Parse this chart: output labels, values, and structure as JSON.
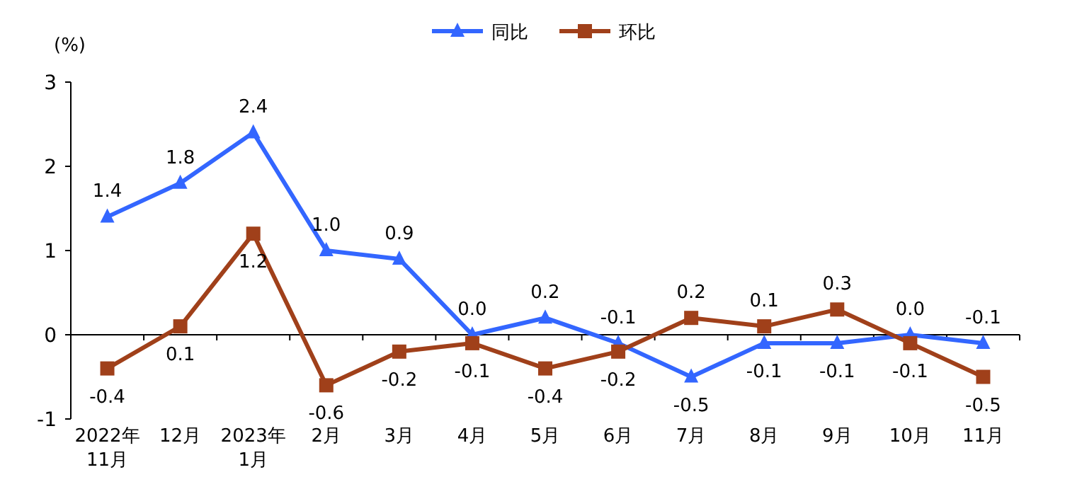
{
  "chart_data": {
    "type": "line",
    "ylabel": "(%)",
    "categories": [
      "2022年\n11月",
      "12月",
      "2023年\n1月",
      "2月",
      "3月",
      "4月",
      "5月",
      "6月",
      "7月",
      "8月",
      "9月",
      "10月",
      "11月"
    ],
    "series": [
      {
        "name": "同比",
        "color": "#3366ff",
        "marker": "triangle",
        "values": [
          1.4,
          1.8,
          2.4,
          1.0,
          0.9,
          0.0,
          0.2,
          -0.1,
          -0.5,
          -0.1,
          -0.1,
          0.0,
          -0.1
        ],
        "value_labels": [
          "1.4",
          "1.8",
          "2.4",
          "1.0",
          "0.9",
          "0.0",
          "0.2",
          "-0.1",
          "-0.5",
          "-0.1",
          "-0.1",
          "0.0",
          "-0.1"
        ]
      },
      {
        "name": "环比",
        "color": "#a0401a",
        "marker": "square",
        "values": [
          -0.4,
          0.1,
          1.2,
          -0.6,
          -0.2,
          -0.1,
          -0.4,
          -0.2,
          0.2,
          0.1,
          0.3,
          -0.1,
          -0.5
        ],
        "value_labels": [
          "-0.4",
          "0.1",
          "1.2",
          "-0.6",
          "-0.2",
          "-0.1",
          "-0.4",
          "-0.2",
          "0.2",
          "0.1",
          "0.3",
          "-0.1",
          "-0.5"
        ]
      }
    ],
    "ylim": [
      -1,
      3
    ],
    "yticks": [
      -1,
      0,
      1,
      2,
      3
    ],
    "legend": "top"
  }
}
